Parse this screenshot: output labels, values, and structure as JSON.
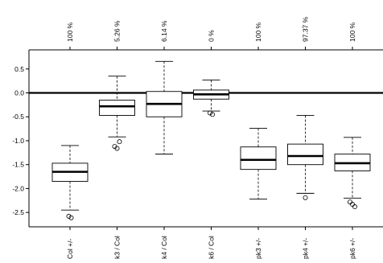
{
  "chart_data": {
    "type": "box",
    "ylim": [
      -2.8,
      0.9
    ],
    "yticks": [
      0.5,
      0.0,
      -0.5,
      -1.0,
      -1.5,
      -2.0,
      -2.5
    ],
    "ytick_labels": [
      "0.5",
      "0.0",
      "-0.5",
      "-1.0",
      "-1.5",
      "-2.0",
      "-2.5"
    ],
    "reference_line": 0.0,
    "grid": false,
    "categories": [
      "Col +/-",
      "k3 / Col",
      "k4 / Col",
      "k6 / Col",
      "pk3 +/-",
      "pk4 +/-",
      "pk6 +/-"
    ],
    "top_labels": [
      "100 %",
      "5.26 %",
      "6.14 %",
      "0 %",
      "100 %",
      "97.37 %",
      "100 %"
    ],
    "boxes": [
      {
        "whisker_low": -2.45,
        "q1": -1.85,
        "median": -1.65,
        "q3": -1.47,
        "whisker_high": -1.1,
        "outliers": [
          -2.58,
          -2.61
        ]
      },
      {
        "whisker_low": -0.92,
        "q1": -0.47,
        "median": -0.28,
        "q3": -0.15,
        "whisker_high": 0.35,
        "outliers": [
          -1.12,
          -1.16,
          -1.02
        ]
      },
      {
        "whisker_low": -1.28,
        "q1": -0.5,
        "median": -0.23,
        "q3": 0.03,
        "whisker_high": 0.66,
        "outliers": []
      },
      {
        "whisker_low": -0.38,
        "q1": -0.13,
        "median": -0.03,
        "q3": 0.06,
        "whisker_high": 0.27,
        "outliers": [
          -0.42,
          -0.45
        ]
      },
      {
        "whisker_low": -2.22,
        "q1": -1.6,
        "median": -1.4,
        "q3": -1.13,
        "whisker_high": -0.74,
        "outliers": []
      },
      {
        "whisker_low": -2.1,
        "q1": -1.5,
        "median": -1.32,
        "q3": -1.07,
        "whisker_high": -0.47,
        "outliers": [
          -2.19
        ]
      },
      {
        "whisker_low": -2.2,
        "q1": -1.63,
        "median": -1.47,
        "q3": -1.28,
        "whisker_high": -0.93,
        "outliers": [
          -2.28,
          -2.33,
          -2.38
        ]
      }
    ]
  }
}
